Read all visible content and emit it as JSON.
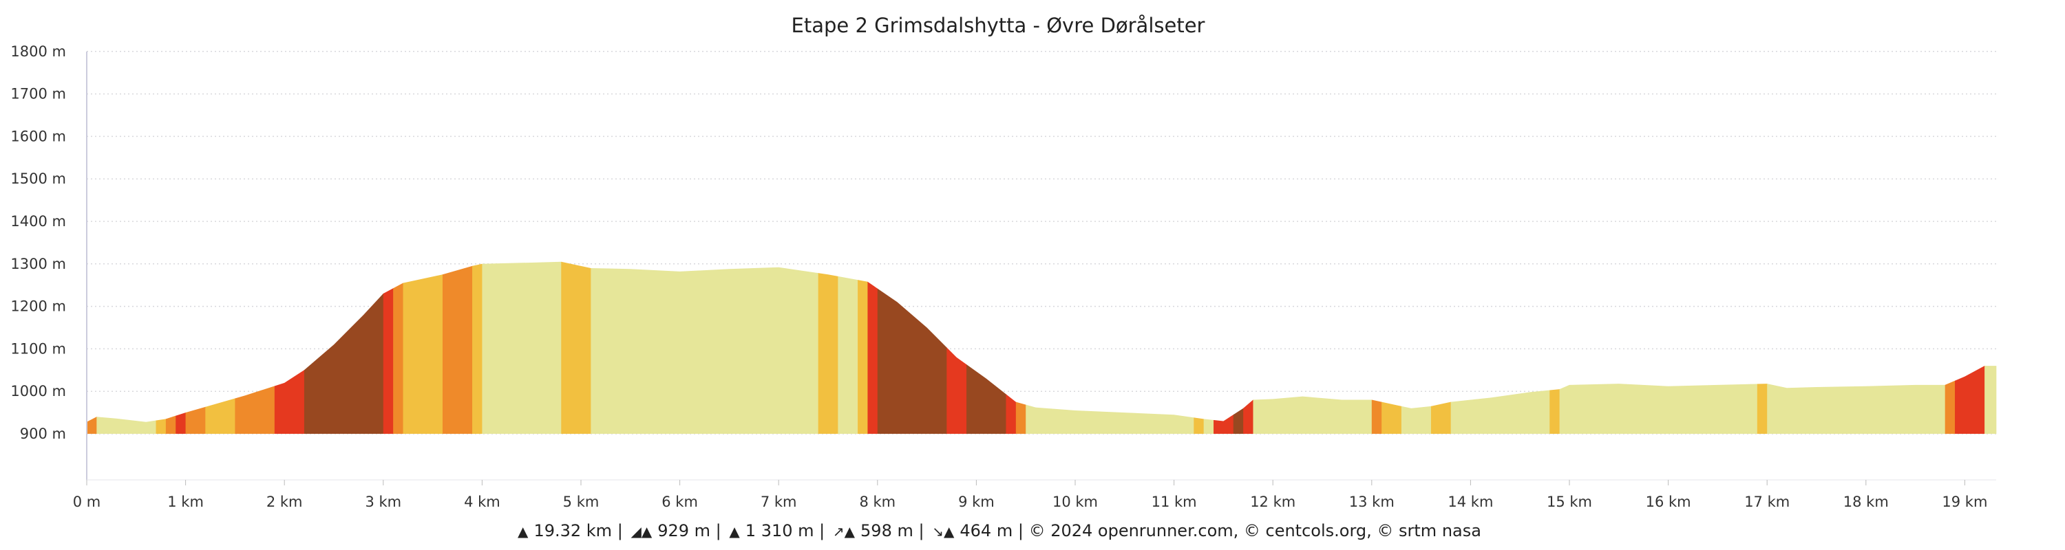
{
  "title": "Etape 2 Grimsdalshytta - Øvre Dørålseter",
  "chart_data": {
    "type": "area",
    "title": "Etape 2 Grimsdalshytta - Øvre Dørålseter",
    "xlabel": "",
    "ylabel": "",
    "xlim": [
      0,
      19.32
    ],
    "ylim": [
      900,
      1800
    ],
    "grid": true,
    "y_ticks": [
      "900 m",
      "1000 m",
      "1100 m",
      "1200 m",
      "1300 m",
      "1400 m",
      "1500 m",
      "1600 m",
      "1700 m",
      "1800 m"
    ],
    "y_tick_values": [
      900,
      1000,
      1100,
      1200,
      1300,
      1400,
      1500,
      1600,
      1700,
      1800
    ],
    "x_ticks": [
      "0 m",
      "1 km",
      "2 km",
      "3 km",
      "4 km",
      "5 km",
      "6 km",
      "7 km",
      "8 km",
      "9 km",
      "10 km",
      "11 km",
      "12 km",
      "13 km",
      "14 km",
      "15 km",
      "16 km",
      "17 km",
      "18 km",
      "19 km"
    ],
    "x_tick_values": [
      0,
      1,
      2,
      3,
      4,
      5,
      6,
      7,
      8,
      9,
      10,
      11,
      12,
      13,
      14,
      15,
      16,
      17,
      18,
      19
    ],
    "profile_km": [
      0,
      0.1,
      0.3,
      0.6,
      0.8,
      1.0,
      1.3,
      1.6,
      2.0,
      2.2,
      2.5,
      2.8,
      3.0,
      3.2,
      3.6,
      3.9,
      4.0,
      4.5,
      4.8,
      5.1,
      5.5,
      6.0,
      6.5,
      7.0,
      7.5,
      7.9,
      8.2,
      8.5,
      8.8,
      9.1,
      9.4,
      9.6,
      10.0,
      10.5,
      11.0,
      11.3,
      11.5,
      11.7,
      11.8,
      12.0,
      12.3,
      12.7,
      13.0,
      13.2,
      13.4,
      13.6,
      13.8,
      14.2,
      14.6,
      14.9,
      15.0,
      15.5,
      16.0,
      16.5,
      17.0,
      17.2,
      17.5,
      18.0,
      18.5,
      18.8,
      19.0,
      19.2,
      19.32
    ],
    "profile_elevation_m": [
      928,
      940,
      936,
      928,
      935,
      950,
      970,
      990,
      1020,
      1050,
      1110,
      1180,
      1230,
      1255,
      1275,
      1295,
      1300,
      1303,
      1305,
      1290,
      1288,
      1282,
      1288,
      1292,
      1275,
      1258,
      1210,
      1150,
      1080,
      1030,
      975,
      962,
      955,
      950,
      945,
      935,
      930,
      960,
      980,
      982,
      988,
      980,
      980,
      970,
      960,
      965,
      975,
      985,
      998,
      1005,
      1015,
      1018,
      1012,
      1015,
      1018,
      1008,
      1010,
      1012,
      1015,
      1015,
      1035,
      1060,
      1060
    ],
    "slope_colors": {
      "flat": "#e6e699",
      "moderate": "#f2c040",
      "steep": "#ef8a2a",
      "very_steep": "#e5391f",
      "extreme": "#984820"
    },
    "segments": [
      {
        "from": 0,
        "to": 0.1,
        "slope": "steep"
      },
      {
        "from": 0.1,
        "to": 0.7,
        "slope": "flat"
      },
      {
        "from": 0.7,
        "to": 0.8,
        "slope": "moderate"
      },
      {
        "from": 0.8,
        "to": 0.9,
        "slope": "steep"
      },
      {
        "from": 0.9,
        "to": 1.0,
        "slope": "very_steep"
      },
      {
        "from": 1.0,
        "to": 1.2,
        "slope": "steep"
      },
      {
        "from": 1.2,
        "to": 1.5,
        "slope": "moderate"
      },
      {
        "from": 1.5,
        "to": 1.9,
        "slope": "steep"
      },
      {
        "from": 1.9,
        "to": 2.2,
        "slope": "very_steep"
      },
      {
        "from": 2.2,
        "to": 3.0,
        "slope": "extreme"
      },
      {
        "from": 3.0,
        "to": 3.1,
        "slope": "very_steep"
      },
      {
        "from": 3.1,
        "to": 3.2,
        "slope": "steep"
      },
      {
        "from": 3.2,
        "to": 3.6,
        "slope": "moderate"
      },
      {
        "from": 3.6,
        "to": 3.9,
        "slope": "steep"
      },
      {
        "from": 3.9,
        "to": 4.0,
        "slope": "moderate"
      },
      {
        "from": 4.0,
        "to": 4.8,
        "slope": "flat"
      },
      {
        "from": 4.8,
        "to": 5.1,
        "slope": "moderate"
      },
      {
        "from": 5.1,
        "to": 7.4,
        "slope": "flat"
      },
      {
        "from": 7.4,
        "to": 7.6,
        "slope": "moderate"
      },
      {
        "from": 7.6,
        "to": 7.8,
        "slope": "flat"
      },
      {
        "from": 7.8,
        "to": 7.9,
        "slope": "moderate"
      },
      {
        "from": 7.9,
        "to": 8.0,
        "slope": "very_steep"
      },
      {
        "from": 8.0,
        "to": 8.7,
        "slope": "extreme"
      },
      {
        "from": 8.7,
        "to": 8.9,
        "slope": "very_steep"
      },
      {
        "from": 8.9,
        "to": 9.3,
        "slope": "extreme"
      },
      {
        "from": 9.3,
        "to": 9.4,
        "slope": "very_steep"
      },
      {
        "from": 9.4,
        "to": 9.5,
        "slope": "steep"
      },
      {
        "from": 9.5,
        "to": 11.2,
        "slope": "flat"
      },
      {
        "from": 11.2,
        "to": 11.3,
        "slope": "moderate"
      },
      {
        "from": 11.3,
        "to": 11.4,
        "slope": "flat"
      },
      {
        "from": 11.4,
        "to": 11.6,
        "slope": "very_steep"
      },
      {
        "from": 11.6,
        "to": 11.7,
        "slope": "extreme"
      },
      {
        "from": 11.7,
        "to": 11.8,
        "slope": "very_steep"
      },
      {
        "from": 11.8,
        "to": 13.0,
        "slope": "flat"
      },
      {
        "from": 13.0,
        "to": 13.1,
        "slope": "steep"
      },
      {
        "from": 13.1,
        "to": 13.3,
        "slope": "moderate"
      },
      {
        "from": 13.3,
        "to": 13.6,
        "slope": "flat"
      },
      {
        "from": 13.6,
        "to": 13.8,
        "slope": "moderate"
      },
      {
        "from": 13.8,
        "to": 14.8,
        "slope": "flat"
      },
      {
        "from": 14.8,
        "to": 14.9,
        "slope": "moderate"
      },
      {
        "from": 14.9,
        "to": 16.9,
        "slope": "flat"
      },
      {
        "from": 16.9,
        "to": 17.0,
        "slope": "moderate"
      },
      {
        "from": 17.0,
        "to": 18.8,
        "slope": "flat"
      },
      {
        "from": 18.8,
        "to": 18.9,
        "slope": "steep"
      },
      {
        "from": 18.9,
        "to": 19.2,
        "slope": "very_steep"
      },
      {
        "from": 19.2,
        "to": 19.32,
        "slope": "flat"
      }
    ]
  },
  "footer": {
    "distance": "19.32 km",
    "min_altitude": "929 m",
    "max_altitude": "1 310 m",
    "ascent": "598 m",
    "descent": "464 m",
    "separator": "|",
    "credits": "© 2024 openrunner.com, © centcols.org, © srtm nasa"
  }
}
